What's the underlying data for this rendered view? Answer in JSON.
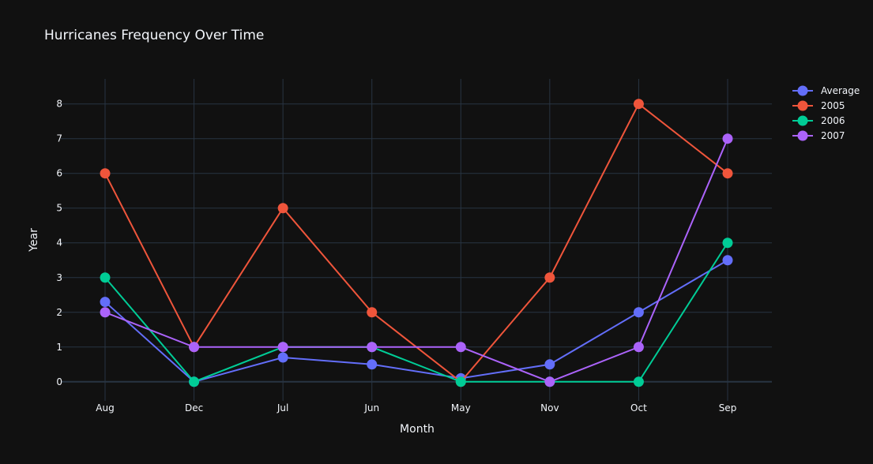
{
  "chart_data": {
    "type": "line",
    "title": "Hurricanes Frequency Over Time",
    "xlabel": "Month",
    "ylabel": "Year",
    "categories": [
      "Aug",
      "Dec",
      "Jul",
      "Jun",
      "May",
      "Nov",
      "Oct",
      "Sep"
    ],
    "y_ticks": [
      "0",
      "1",
      "2",
      "3",
      "4",
      "5",
      "6",
      "7",
      "8"
    ],
    "ylim": [
      -0.55,
      8.72
    ],
    "grid": true,
    "legend_position": "top-right",
    "background_color": "#111111",
    "series": [
      {
        "name": "Average",
        "color": "#636efa",
        "values": [
          2.3,
          0,
          0.7,
          0.5,
          0.1,
          0.5,
          2,
          3.5
        ]
      },
      {
        "name": "2005",
        "color": "#EF553B",
        "values": [
          6,
          1,
          5,
          2,
          0,
          3,
          8,
          6
        ]
      },
      {
        "name": "2006",
        "color": "#00cc96",
        "values": [
          3,
          0,
          1,
          1,
          0,
          0,
          0,
          4
        ]
      },
      {
        "name": "2007",
        "color": "#ab63fa",
        "values": [
          2,
          1,
          1,
          1,
          1,
          0,
          1,
          7
        ]
      }
    ]
  }
}
